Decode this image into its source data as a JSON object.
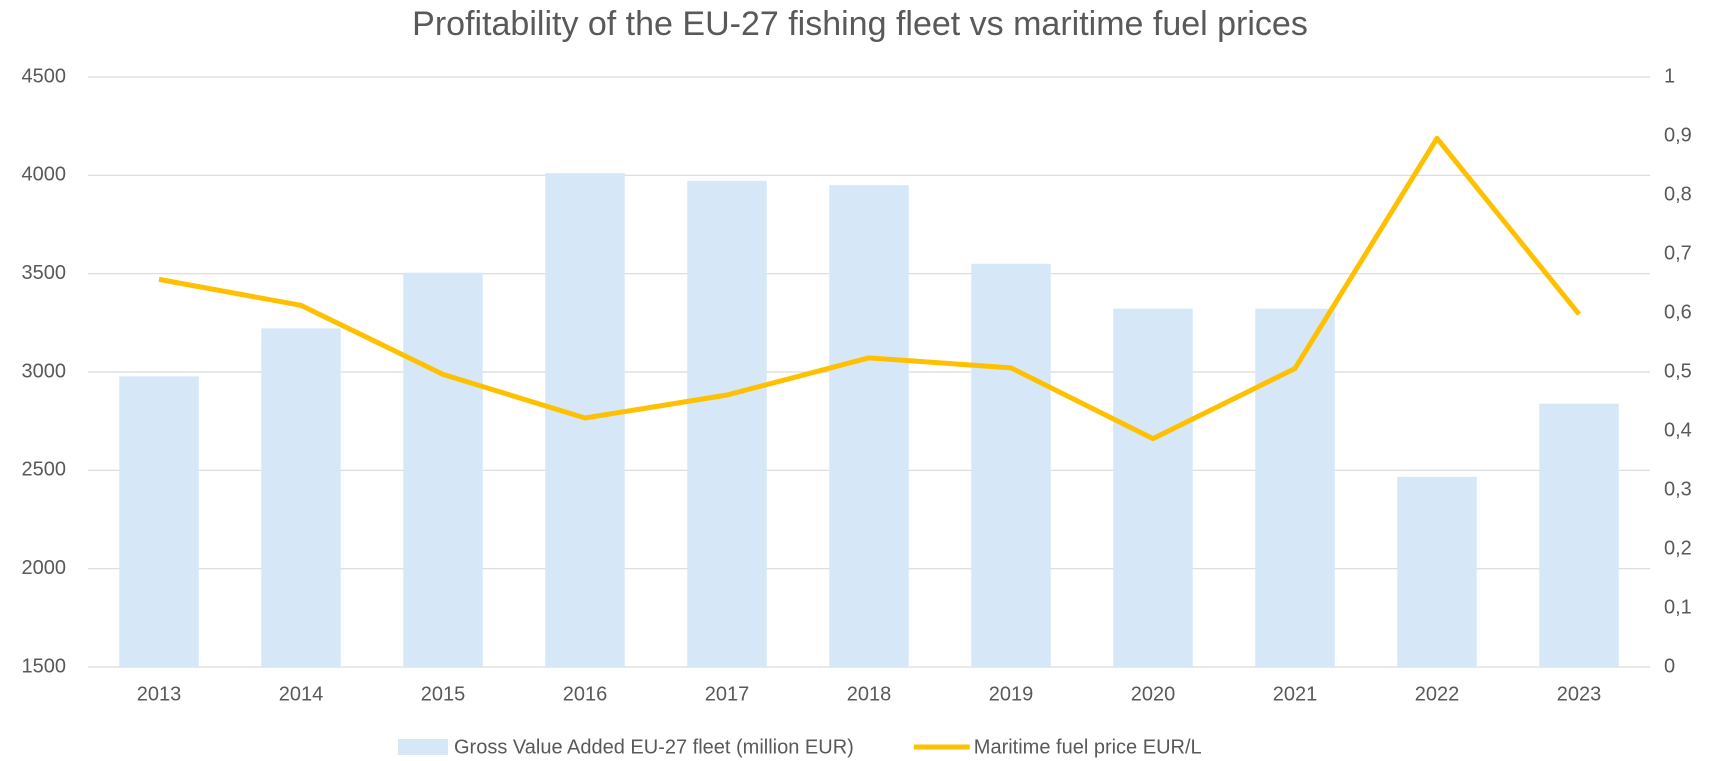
{
  "chart_data": {
    "type": "bar-line",
    "title": "Profitability of the EU-27 fishing fleet vs maritime fuel prices",
    "categories": [
      "2013",
      "2014",
      "2015",
      "2016",
      "2017",
      "2018",
      "2019",
      "2020",
      "2021",
      "2022",
      "2023"
    ],
    "series": [
      {
        "name": "Gross Value Added EU-27 fleet (million EUR)",
        "type": "bar",
        "color": "#d6e8f7",
        "values": [
          2978,
          3222,
          3505,
          4011,
          3972,
          3950,
          3550,
          3322,
          3322,
          2467,
          2839
        ]
      },
      {
        "name": "Maritime fuel price EUR/L",
        "type": "line",
        "axis": "y2",
        "color": "#ffc000",
        "values": [
          0.657,
          0.613,
          0.496,
          0.422,
          0.461,
          0.524,
          0.507,
          0.387,
          0.506,
          0.896,
          0.598
        ]
      }
    ],
    "ylim": [
      1500,
      4500
    ],
    "yticks": [
      1500,
      2000,
      2500,
      3000,
      3500,
      4000,
      4500
    ],
    "y2lim": [
      0,
      1
    ],
    "y2ticks": [
      0,
      {
        "value": 0.1,
        "label": "0,1"
      },
      {
        "value": 0.2,
        "label": "0,2"
      },
      {
        "value": 0.3,
        "label": "0,3"
      },
      {
        "value": 0.4,
        "label": "0,4"
      },
      {
        "value": 0.5,
        "label": "0,5"
      },
      {
        "value": 0.6,
        "label": "0,6"
      },
      {
        "value": 0.7,
        "label": "0,7"
      },
      {
        "value": 0.8,
        "label": "0,8"
      },
      {
        "value": 0.9,
        "label": "0,9"
      },
      1
    ],
    "grid": true,
    "legend": "bottom"
  }
}
